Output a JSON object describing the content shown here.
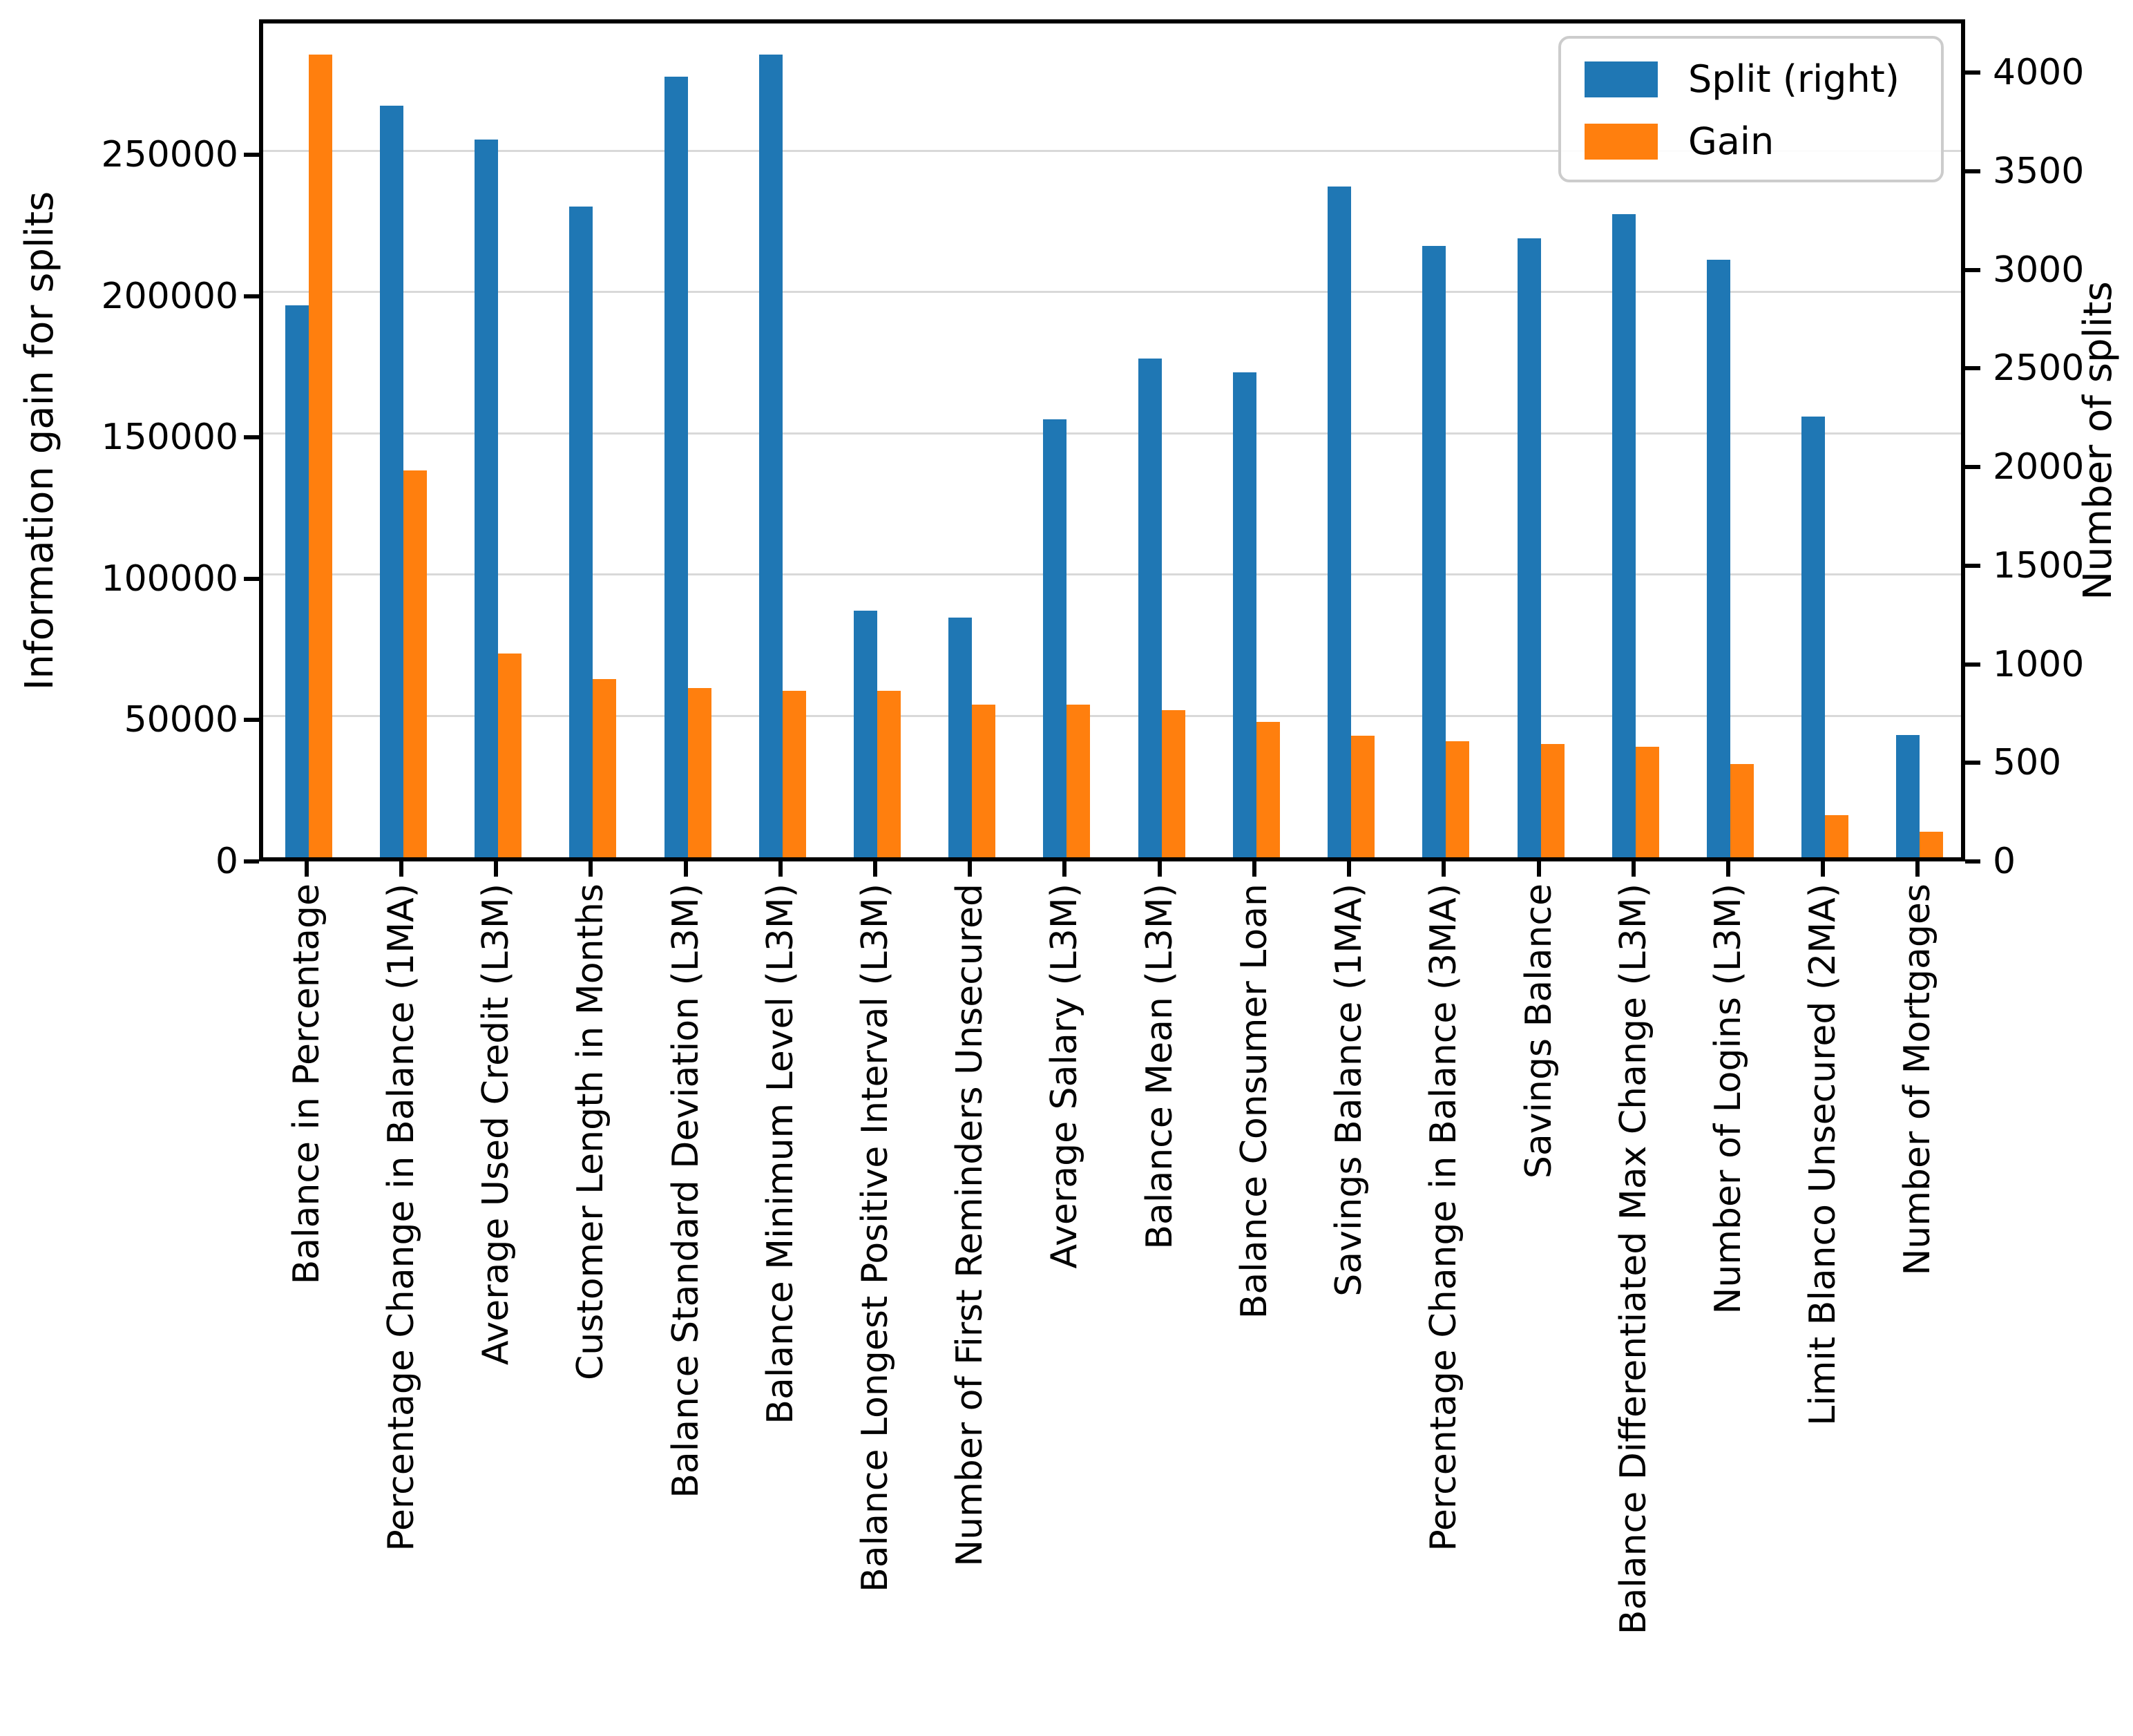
{
  "chart_data": {
    "type": "bar",
    "title": "",
    "grid": true,
    "legend_position": "upper right",
    "categories": [
      "Balance in Percentage",
      "Percentage Change in Balance (1MA)",
      "Average Used Credit (L3M)",
      "Customer Length in Months",
      "Balance Standard Deviation (L3M)",
      "Balance Minimum Level (L3M)",
      "Balance Longest Positive Interval (L3M)",
      "Number of First Reminders Unsecured",
      "Average Salary (L3M)",
      "Balance Mean (L3M)",
      "Balance Consumer Loan",
      "Savings Balance (1MA)",
      "Percentage Change in Balance (3MA)",
      "Savings Balance",
      "Balance Differentiated Max Change (L3M)",
      "Number of Logins (L3M)",
      "Limit Blanco Unsecured (2MA)",
      "Number of Mortgages"
    ],
    "series": [
      {
        "name": "Split (right)",
        "axis": "right",
        "color": "#1f77b4",
        "values": [
          2800,
          3810,
          3640,
          3300,
          3960,
          4070,
          1250,
          1215,
          2220,
          2530,
          2460,
          3400,
          3100,
          3140,
          3260,
          3030,
          2235,
          620
        ]
      },
      {
        "name": "Gain",
        "axis": "left",
        "color": "#ff7f0e",
        "values": [
          284000,
          137000,
          72000,
          63000,
          60000,
          59000,
          59000,
          54000,
          54000,
          52000,
          48000,
          43000,
          41000,
          40000,
          39000,
          33000,
          15000,
          9000
        ]
      }
    ],
    "left_axis": {
      "label": "Information gain for splits",
      "ticks": [
        0,
        50000,
        100000,
        150000,
        200000,
        250000
      ],
      "ylim": [
        0,
        298000
      ]
    },
    "right_axis": {
      "label": "Number of splits",
      "ticks": [
        0,
        500,
        1000,
        1500,
        2000,
        2500,
        3000,
        3500,
        4000
      ],
      "ylim": [
        0,
        4270
      ]
    }
  }
}
